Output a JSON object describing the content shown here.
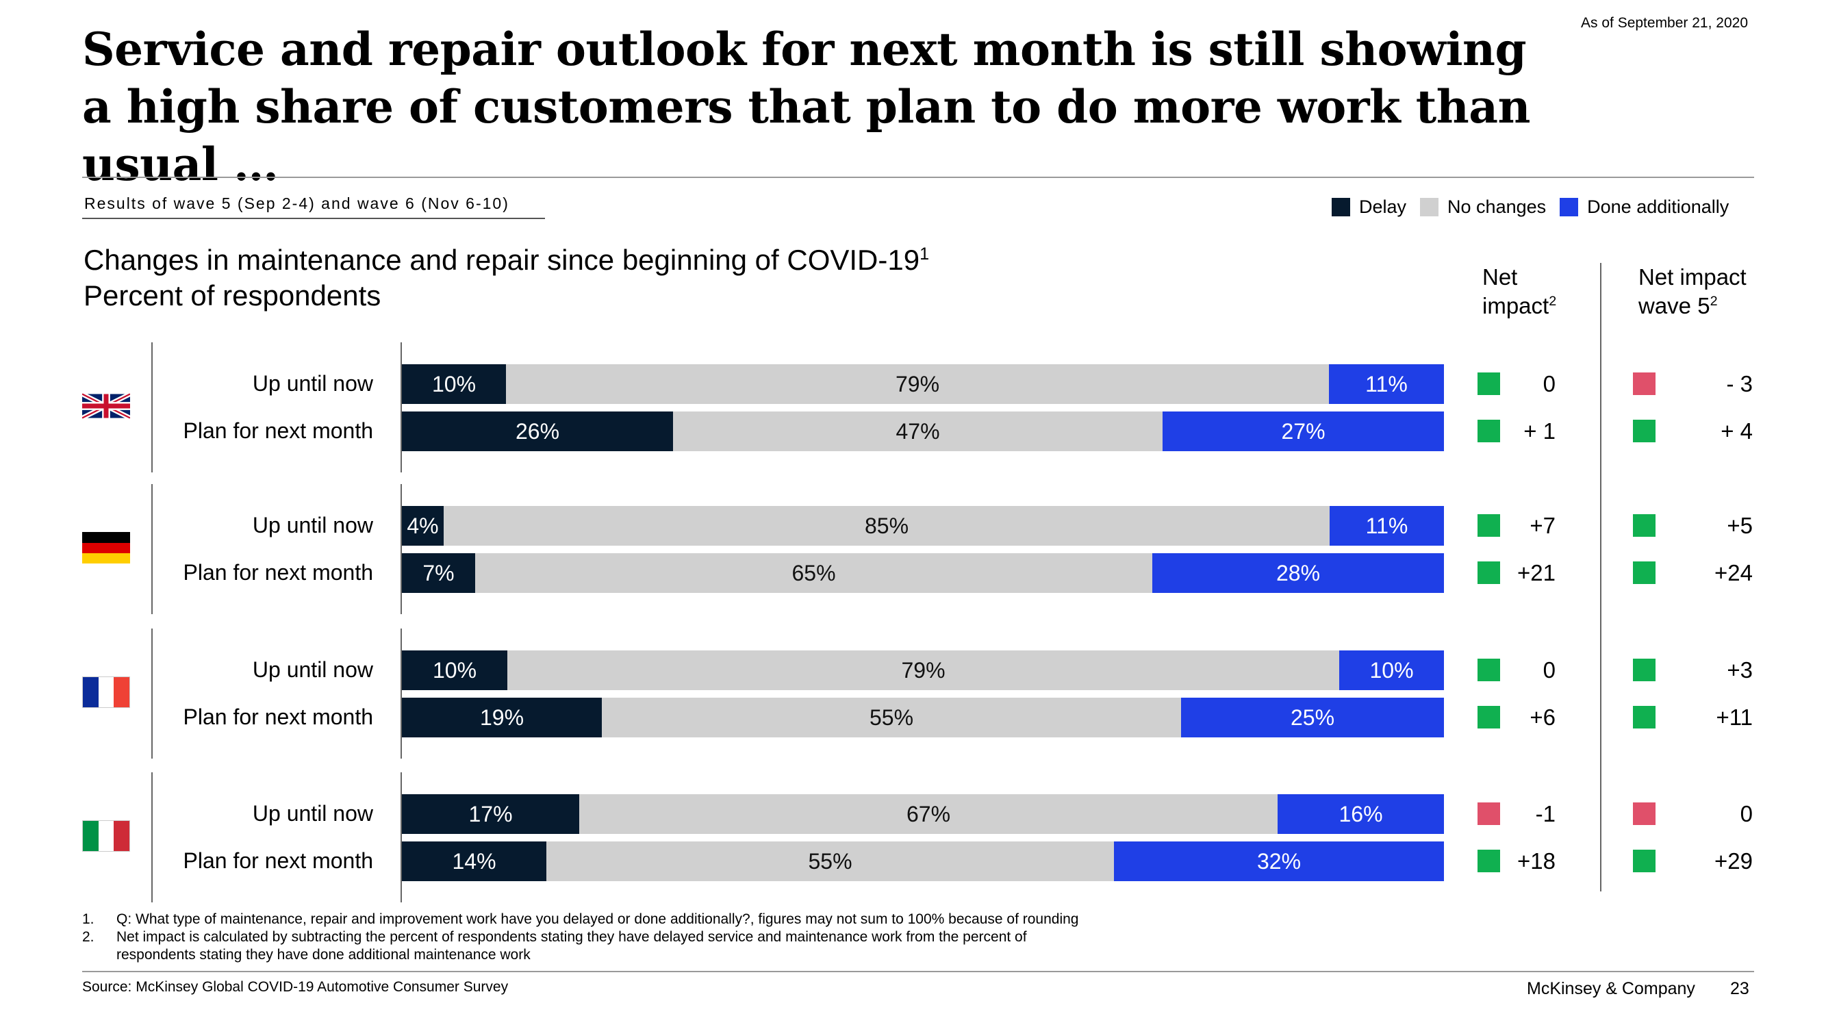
{
  "as_of": "As of September 21, 2020",
  "title_line1": "Service and repair outlook for next month is still showing",
  "title_line2": "a high share of customers that plan to do more work than usual …",
  "wave_label": "Results of wave 5 (Sep 2-4) and wave 6 (Nov 6-10)",
  "legend": {
    "delay": "Delay",
    "no_changes": "No changes",
    "done_additionally": "Done additionally"
  },
  "subtitle_line1": "Changes in maintenance and repair since beginning of COVID-19",
  "subtitle_sup": "1",
  "subtitle_line2": "Percent of respondents",
  "net_impact_head": {
    "line1": "Net",
    "line2": "impact",
    "sup": "2"
  },
  "net_impact_wave5_head": {
    "line1": "Net impact",
    "line2": "wave 5",
    "sup": "2"
  },
  "colors": {
    "delay": "#061a2e",
    "no_changes": "#d0d0d0",
    "done_additionally": "#1f3fe6",
    "positive": "#10b050",
    "negative": "#e0506a"
  },
  "icons": [
    "flag-uk-icon",
    "flag-germany-icon",
    "flag-france-icon",
    "flag-italy-icon"
  ],
  "chart_data": {
    "type": "bar",
    "orientation": "horizontal",
    "stacked": true,
    "series_names": [
      "Delay",
      "No changes",
      "Done additionally"
    ],
    "groups": [
      {
        "flag": "flag-uk-icon",
        "rows": [
          {
            "label": "Up until now",
            "values": [
              10,
              79,
              11
            ],
            "value_labels": [
              "10%",
              "79%",
              "11%"
            ],
            "net": "0",
            "net_sign": "positive",
            "net_w5": "- 3",
            "net_w5_sign": "negative"
          },
          {
            "label": "Plan for next month",
            "values": [
              26,
              47,
              27
            ],
            "value_labels": [
              "26%",
              "47%",
              "27%"
            ],
            "net": "+ 1",
            "net_sign": "positive",
            "net_w5": "+ 4",
            "net_w5_sign": "positive"
          }
        ]
      },
      {
        "flag": "flag-germany-icon",
        "rows": [
          {
            "label": "Up until now",
            "values": [
              4,
              85,
              11
            ],
            "value_labels": [
              "4%",
              "85%",
              "11%"
            ],
            "net": "+7",
            "net_sign": "positive",
            "net_w5": "+5",
            "net_w5_sign": "positive"
          },
          {
            "label": "Plan for next month",
            "values": [
              7,
              65,
              28
            ],
            "value_labels": [
              "7%",
              "65%",
              "28%"
            ],
            "net": "+21",
            "net_sign": "positive",
            "net_w5": "+24",
            "net_w5_sign": "positive"
          }
        ]
      },
      {
        "flag": "flag-france-icon",
        "rows": [
          {
            "label": "Up until now",
            "values": [
              10,
              79,
              10
            ],
            "value_labels": [
              "10%",
              "79%",
              "10%"
            ],
            "net": "0",
            "net_sign": "positive",
            "net_w5": "+3",
            "net_w5_sign": "positive"
          },
          {
            "label": "Plan for next month",
            "values": [
              19,
              55,
              25
            ],
            "value_labels": [
              "19%",
              "55%",
              "25%"
            ],
            "net": "+6",
            "net_sign": "positive",
            "net_w5": "+11",
            "net_w5_sign": "positive"
          }
        ]
      },
      {
        "flag": "flag-italy-icon",
        "rows": [
          {
            "label": "Up until now",
            "values": [
              17,
              67,
              16
            ],
            "value_labels": [
              "17%",
              "67%",
              "16%"
            ],
            "net": "-1",
            "net_sign": "negative",
            "net_w5": "0",
            "net_w5_sign": "negative"
          },
          {
            "label": "Plan for next month",
            "values": [
              14,
              55,
              32
            ],
            "value_labels": [
              "14%",
              "55%",
              "32%"
            ],
            "net": "+18",
            "net_sign": "positive",
            "net_w5": "+29",
            "net_w5_sign": "positive"
          }
        ]
      }
    ]
  },
  "footnotes": [
    {
      "num": "1.",
      "text": "Q: What type of maintenance, repair and improvement work have you delayed or done additionally?, figures may not sum to 100% because of rounding"
    },
    {
      "num": "2.",
      "text": "Net impact is calculated by subtracting the percent of respondents stating they have delayed service and maintenance work from the percent of"
    },
    {
      "num": "",
      "text": "respondents stating they have done additional maintenance work"
    }
  ],
  "source": "Source: McKinsey Global COVID-19 Automotive Consumer Survey",
  "brand": "McKinsey & Company",
  "page_number": "23"
}
